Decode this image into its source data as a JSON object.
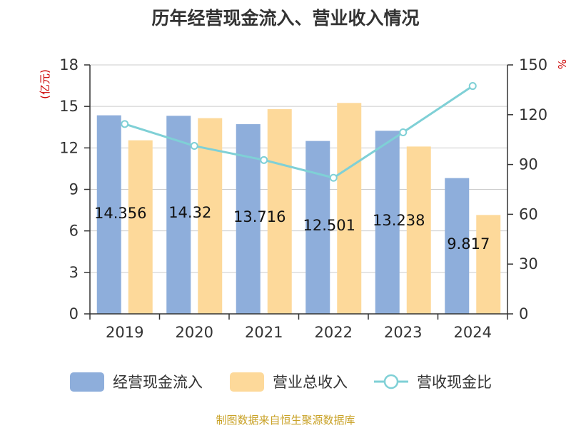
{
  "title": "历年经营现金流入、营业收入情况",
  "source": "制图数据来自恒生聚源数据库",
  "colors": {
    "inflow": "#8eaedb",
    "revenue": "#fdd99a",
    "ratio": "#7fd0d6",
    "unit_label": "#cc0000",
    "axis": "#333333",
    "grid": "#cccccc",
    "text": "#333333"
  },
  "chart_data": {
    "type": "bar",
    "categories": [
      "2019",
      "2020",
      "2021",
      "2022",
      "2023",
      "2024"
    ],
    "y_left": {
      "label": "(亿元)",
      "ylim": [
        0,
        18
      ],
      "ticks": [
        "0",
        "3",
        "6",
        "9",
        "12",
        "15",
        "18"
      ]
    },
    "y_right": {
      "label": "%",
      "ylim": [
        0,
        150
      ],
      "ticks": [
        "0",
        "30",
        "60",
        "90",
        "120",
        "150"
      ]
    },
    "grid": true,
    "legend_position": "bottom",
    "series": [
      {
        "name": "经营现金流入",
        "type": "bar",
        "axis": "left",
        "values": [
          14.356,
          14.32,
          13.716,
          12.501,
          13.238,
          9.817
        ],
        "data_labels": [
          "14.356",
          "14.32",
          "13.716",
          "12.501",
          "13.238",
          "9.817"
        ]
      },
      {
        "name": "营业总收入",
        "type": "bar",
        "axis": "left",
        "values": [
          12.55,
          14.15,
          14.8,
          15.25,
          12.1,
          7.15
        ]
      },
      {
        "name": "营收现金比",
        "type": "line",
        "axis": "right",
        "values": [
          114.4,
          101.2,
          92.7,
          82.0,
          109.4,
          137.3
        ]
      }
    ]
  }
}
